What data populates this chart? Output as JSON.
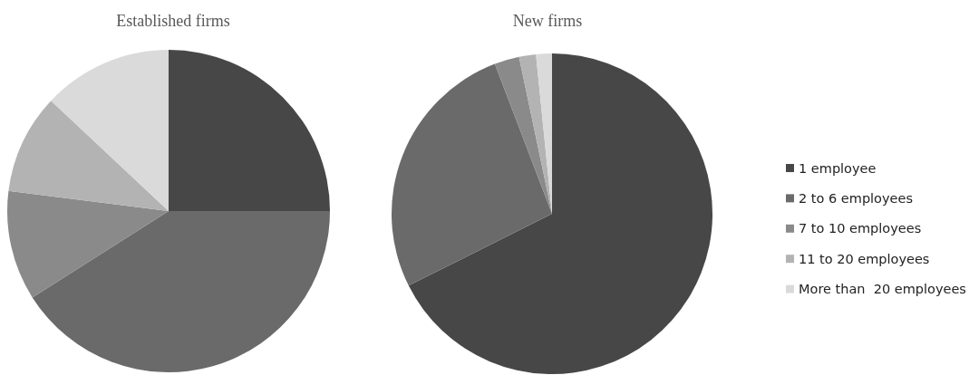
{
  "chart_data": {
    "type": "pie",
    "categories": [
      "1 employee",
      "2 to 6 employees",
      "7 to 10 employees",
      "11 to 20 employees",
      "More than  20 employees"
    ],
    "colors": [
      "#474747",
      "#6a6a6a",
      "#8a8a8a",
      "#b3b3b3",
      "#dadada"
    ],
    "legend": "right",
    "series": [
      {
        "name": "Established firms",
        "values": [
          25,
          41,
          11,
          10,
          13
        ]
      },
      {
        "name": "New firms",
        "values": [
          67.6,
          26.6,
          2.5,
          1.7,
          1.6
        ]
      }
    ]
  }
}
